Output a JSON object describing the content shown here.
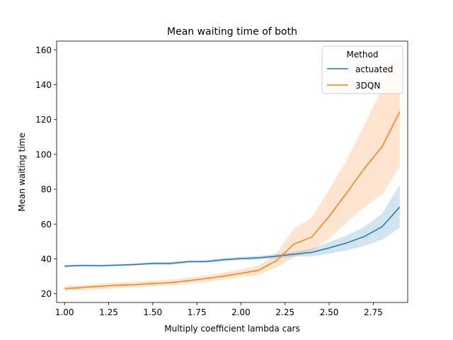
{
  "chart_data": {
    "type": "line",
    "title": "Mean waiting time of both",
    "xlabel": "Multiply coefficient lambda cars",
    "ylabel": "Mean waiting time",
    "xlim": [
      0.955,
      2.945
    ],
    "ylim": [
      15,
      165
    ],
    "xticks": [
      "1.00",
      "1.25",
      "1.50",
      "1.75",
      "2.00",
      "2.25",
      "2.50",
      "2.75"
    ],
    "xtick_values": [
      1.0,
      1.25,
      1.5,
      1.75,
      2.0,
      2.25,
      2.5,
      2.75
    ],
    "yticks": [
      "20",
      "40",
      "60",
      "80",
      "100",
      "120",
      "140",
      "160"
    ],
    "ytick_values": [
      20,
      40,
      60,
      80,
      100,
      120,
      140,
      160
    ],
    "grid": false,
    "legend": {
      "title": "Method",
      "position": "top-right"
    },
    "x": [
      1.0,
      1.1,
      1.2,
      1.3,
      1.4,
      1.5,
      1.6,
      1.7,
      1.8,
      1.9,
      2.0,
      2.1,
      2.2,
      2.3,
      2.4,
      2.5,
      2.6,
      2.7,
      2.8,
      2.9
    ],
    "series": [
      {
        "name": "actuated",
        "color": "#1f77b4",
        "values": [
          35.8,
          36.2,
          36.1,
          36.4,
          36.8,
          37.4,
          37.4,
          38.4,
          38.5,
          39.5,
          40.2,
          40.6,
          41.6,
          42.7,
          43.7,
          46.3,
          49.2,
          52.9,
          58.5,
          69.8
        ],
        "lower": [
          35.0,
          35.6,
          35.5,
          35.8,
          36.2,
          36.6,
          36.6,
          37.6,
          37.7,
          38.6,
          39.2,
          39.5,
          40.3,
          41.2,
          41.5,
          43.0,
          44.9,
          47.4,
          51.0,
          58.0
        ],
        "upper": [
          36.6,
          36.8,
          36.7,
          37.0,
          37.4,
          38.2,
          38.2,
          39.2,
          39.3,
          40.4,
          41.2,
          41.7,
          42.9,
          44.2,
          45.9,
          49.6,
          53.5,
          58.4,
          66.0,
          82.5
        ]
      },
      {
        "name": "3DQN",
        "color": "#ff7f0e",
        "values": [
          22.9,
          23.6,
          24.3,
          24.9,
          25.3,
          25.9,
          26.4,
          27.5,
          28.8,
          30.1,
          31.8,
          33.5,
          39.0,
          48.5,
          52.5,
          64.5,
          78.0,
          92.0,
          104.5,
          124.5
        ],
        "lower": [
          21.5,
          22.1,
          22.7,
          23.3,
          23.7,
          24.2,
          24.7,
          25.7,
          26.9,
          28.1,
          29.6,
          30.8,
          35.0,
          41.0,
          44.5,
          52.0,
          61.0,
          70.0,
          77.0,
          93.0
        ],
        "upper": [
          24.3,
          25.1,
          25.9,
          26.5,
          26.9,
          27.6,
          28.1,
          29.3,
          30.7,
          32.1,
          34.0,
          36.2,
          43.0,
          57.5,
          63.5,
          80.0,
          97.0,
          117.0,
          138.0,
          157.5
        ]
      }
    ]
  }
}
